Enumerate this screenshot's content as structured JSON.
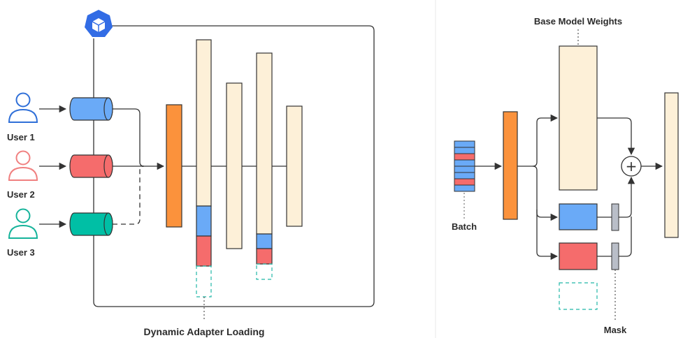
{
  "left": {
    "users": [
      {
        "label": "User 1"
      },
      {
        "label": "User 2"
      },
      {
        "label": "User 3"
      }
    ],
    "caption": "Dynamic Adapter Loading"
  },
  "right": {
    "base_label": "Base Model Weights",
    "batch_label": "Batch",
    "mask_label": "Mask",
    "plus_symbol": "+"
  },
  "colors": {
    "blue": "#6aaaf7",
    "red": "#f56c6c",
    "teal": "#00bfa5",
    "orange": "#fb923c",
    "cream": "#fdf0d8",
    "line": "#333333",
    "logo": "#326ce5"
  }
}
